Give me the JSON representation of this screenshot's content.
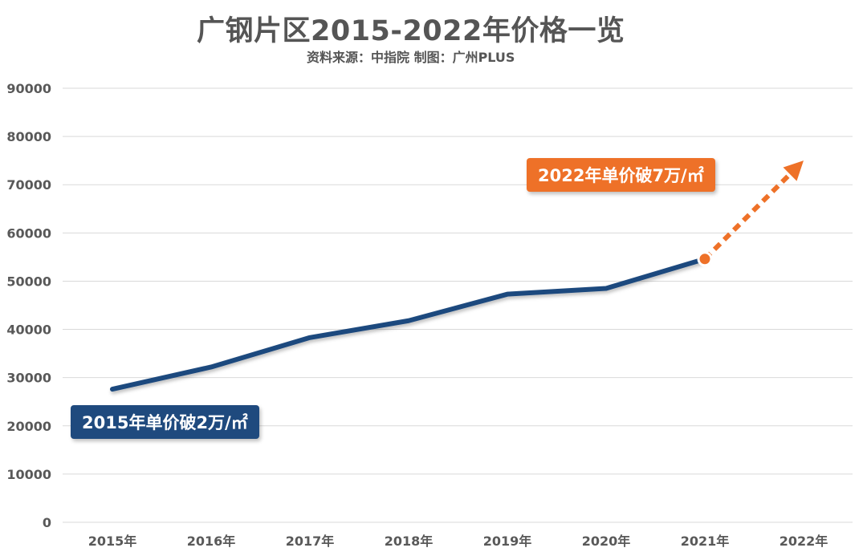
{
  "title": "广钢片区2015-2022年价格一览",
  "subtitle": "资料来源：中指院  制图：广州PLUS",
  "callouts": {
    "start": "2015年单价破2万/㎡",
    "end": "2022年单价破7万/㎡"
  },
  "colors": {
    "line": "#1f4a7e",
    "projection": "#ee7128",
    "grid": "#d9d9d9",
    "tick_text": "#595959"
  },
  "chart_data": {
    "type": "line",
    "categories": [
      "2015年",
      "2016年",
      "2017年",
      "2018年",
      "2019年",
      "2020年",
      "2021年",
      "2022年"
    ],
    "ylim": [
      0,
      90000
    ],
    "yticks": [
      0,
      10000,
      20000,
      30000,
      40000,
      50000,
      60000,
      70000,
      80000,
      90000
    ],
    "grid": true,
    "series": [
      {
        "values": [
          27600,
          32200,
          38300,
          41800,
          47300,
          48500,
          54600,
          null
        ]
      }
    ],
    "projection": {
      "from": [
        "2021年",
        54600
      ],
      "to": [
        "2022年",
        75000
      ],
      "style": "dashed-arrow"
    }
  }
}
